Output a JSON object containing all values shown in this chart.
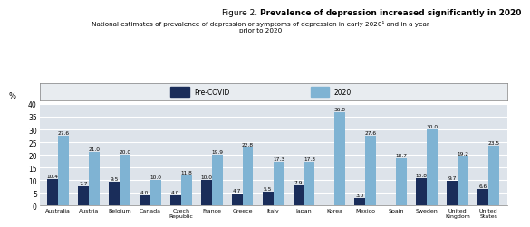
{
  "title_plain": "Figure 2. ",
  "title_bold": "Prevalence of depression increased significantly in 2020",
  "subtitle": "National estimates of prevalence of depression or symptoms of depression in early 2020¹ and in a year\nprior to 2020",
  "categories": [
    "Australia",
    "Austria",
    "Belgium",
    "Canada",
    "Czech\nRepublic",
    "France",
    "Greece",
    "Italy",
    "Japan",
    "Korea",
    "Mexico",
    "Spain",
    "Sweden",
    "United\nKingdom",
    "United\nStates"
  ],
  "pre_covid": [
    10.4,
    7.7,
    9.5,
    4.0,
    4.0,
    10.0,
    4.7,
    5.5,
    7.9,
    null,
    3.0,
    null,
    10.8,
    9.7,
    6.6
  ],
  "covid_2020": [
    27.6,
    21.0,
    20.0,
    10.0,
    11.8,
    19.9,
    22.8,
    17.3,
    17.3,
    36.8,
    27.6,
    18.7,
    30.0,
    19.2,
    23.5
  ],
  "pre_covid_color": "#1a2d5a",
  "covid_color": "#7fb3d3",
  "plot_bg_color": "#dde3ea",
  "legend_bg_color": "#e8ecf0",
  "ylim": [
    0,
    40
  ],
  "yticks": [
    0,
    5,
    10,
    15,
    20,
    25,
    30,
    35,
    40
  ],
  "ylabel": "%",
  "legend_pre": "Pre-COVID",
  "legend_2020": "2020",
  "bar_width": 0.35
}
